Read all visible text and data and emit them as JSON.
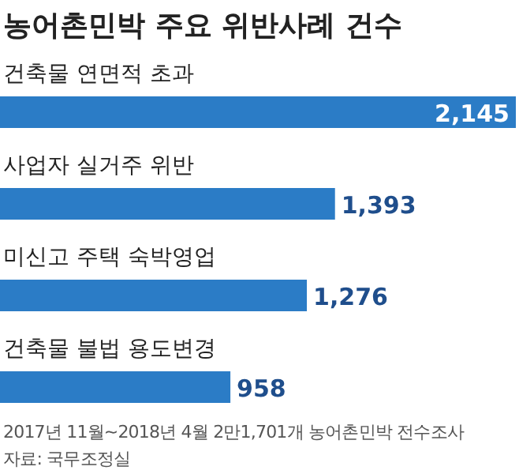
{
  "chart_data": {
    "type": "bar",
    "orientation": "horizontal",
    "title": "농어촌민박 주요 위반사례 건수",
    "categories": [
      "건축물 연면적 초과",
      "사업자 실거주 위반",
      "미신고 주택 숙박영업",
      "건축물 불법 용도변경"
    ],
    "values": [
      2145,
      1393,
      1276,
      958
    ],
    "value_labels": [
      "2,145",
      "1,393",
      "1,276",
      "958"
    ],
    "color": "#2b7cc6",
    "annotations": [
      "2017년 11월~2018년 4월 2만1,701개 농어촌민박 전수조사",
      "자료: 국무조정실"
    ]
  }
}
